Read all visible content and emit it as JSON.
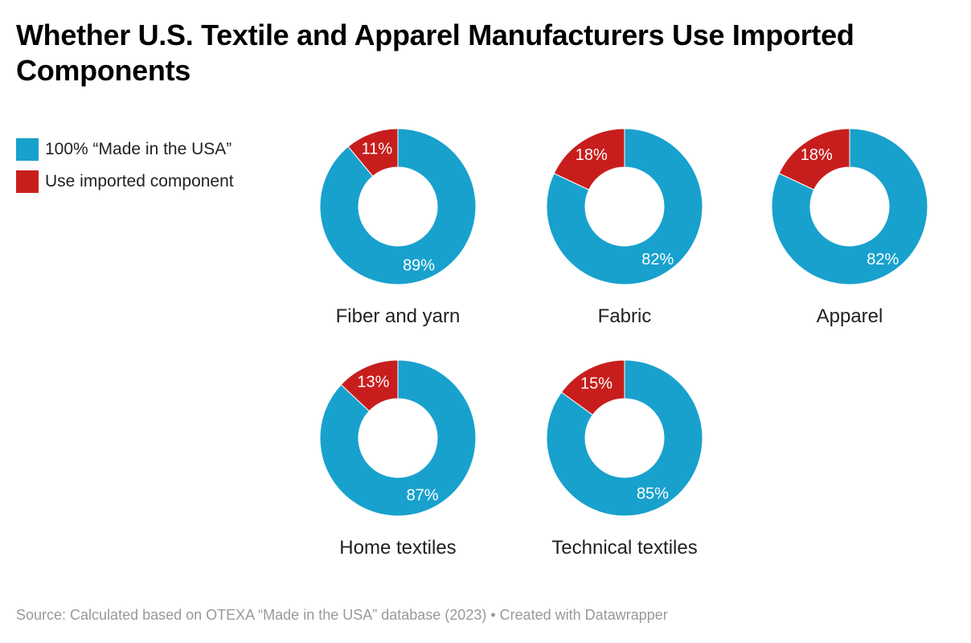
{
  "title": "Whether U.S. Textile and Apparel Manufacturers Use Imported Components",
  "legend": [
    {
      "label": "100% “Made in the USA”",
      "color": "#18a1cd"
    },
    {
      "label": "Use imported component",
      "color": "#c71e1d"
    }
  ],
  "source": "Source: Calculated based on OTEXA “Made in the USA” database (2023) • Created with Datawrapper",
  "chart_data": {
    "type": "pie",
    "variant": "donut",
    "series_names": [
      "100% “Made in the USA”",
      "Use imported component"
    ],
    "colors": [
      "#18a1cd",
      "#c71e1d"
    ],
    "legend_position": "top-left",
    "charts": [
      {
        "label": "Fiber and yarn",
        "values": [
          89,
          11
        ]
      },
      {
        "label": "Fabric",
        "values": [
          82,
          18
        ]
      },
      {
        "label": "Apparel",
        "values": [
          82,
          18
        ]
      },
      {
        "label": "Home textiles",
        "values": [
          87,
          13
        ]
      },
      {
        "label": "Technical textiles",
        "values": [
          85,
          15
        ]
      }
    ]
  }
}
